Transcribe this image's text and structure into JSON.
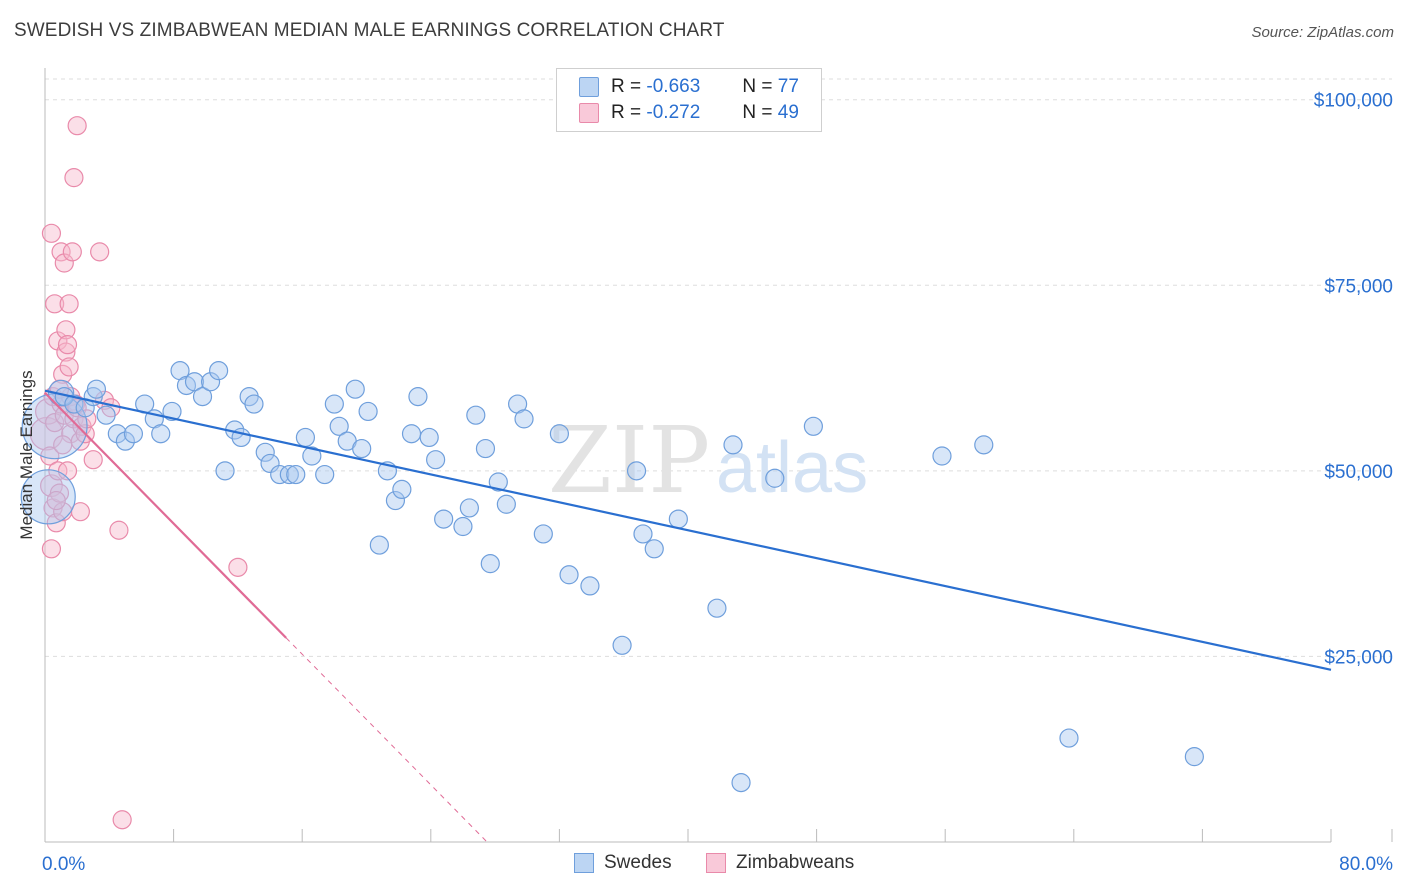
{
  "header": {
    "title": "SWEDISH VS ZIMBABWEAN MEDIAN MALE EARNINGS CORRELATION CHART",
    "source": "Source: ZipAtlas.com"
  },
  "watermark": {
    "zip": "ZIP",
    "atlas": "atlas"
  },
  "legend": {
    "r_label": "R =",
    "n_label": "N =",
    "series": [
      {
        "r_value": "-0.663",
        "n_value": "77"
      },
      {
        "r_value": "-0.272",
        "n_value": "49"
      }
    ]
  },
  "colors": {
    "swedes_fill": "#a9c8f0",
    "swedes_stroke": "#6f9fdc",
    "swedes_line": "#2a6fd0",
    "zimb_fill": "#f7b8cd",
    "zimb_stroke": "#e98aaa",
    "zimb_line": "#e06b96",
    "grid": "#dddddd",
    "label_blue": "#2a6fd0"
  },
  "chart_data": {
    "type": "scatter",
    "title": "SWEDISH VS ZIMBABWEAN MEDIAN MALE EARNINGS CORRELATION CHART",
    "xlabel": "",
    "ylabel": "Median Male Earnings",
    "xlim": [
      0,
      0.8
    ],
    "ylim": [
      0,
      104000
    ],
    "x_tick_labels": [
      "0.0%",
      "80.0%"
    ],
    "y_ticks": [
      {
        "value": 25000,
        "label": "$25,000"
      },
      {
        "value": 50000,
        "label": "$50,000"
      },
      {
        "value": 75000,
        "label": "$75,000"
      },
      {
        "value": 100000,
        "label": "$100,000"
      }
    ],
    "series": [
      {
        "name": "Swedes",
        "r": -0.663,
        "n": 77,
        "trend": {
          "x0": 0.0,
          "y0": 60800,
          "x1": 0.8,
          "y1": 23200,
          "dashed_from": null
        },
        "points": [
          [
            0.006,
            56000,
            36
          ],
          [
            0.002,
            46500,
            30
          ],
          [
            0.01,
            60500,
            14
          ],
          [
            0.012,
            60000,
            10
          ],
          [
            0.018,
            59000,
            10
          ],
          [
            0.025,
            58500,
            10
          ],
          [
            0.03,
            60000,
            10
          ],
          [
            0.032,
            61000,
            10
          ],
          [
            0.038,
            57500,
            10
          ],
          [
            0.045,
            55000,
            10
          ],
          [
            0.05,
            54000,
            10
          ],
          [
            0.055,
            55000,
            10
          ],
          [
            0.062,
            59000,
            10
          ],
          [
            0.068,
            57000,
            10
          ],
          [
            0.072,
            55000,
            10
          ],
          [
            0.079,
            58000,
            10
          ],
          [
            0.084,
            63500,
            10
          ],
          [
            0.088,
            61500,
            10
          ],
          [
            0.093,
            62000,
            10
          ],
          [
            0.098,
            60000,
            10
          ],
          [
            0.103,
            62000,
            10
          ],
          [
            0.108,
            63500,
            10
          ],
          [
            0.112,
            50000,
            10
          ],
          [
            0.118,
            55500,
            10
          ],
          [
            0.122,
            54500,
            10
          ],
          [
            0.127,
            60000,
            10
          ],
          [
            0.13,
            59000,
            10
          ],
          [
            0.137,
            52500,
            10
          ],
          [
            0.14,
            51000,
            10
          ],
          [
            0.146,
            49500,
            10
          ],
          [
            0.152,
            49500,
            10
          ],
          [
            0.156,
            49500,
            10
          ],
          [
            0.162,
            54500,
            10
          ],
          [
            0.166,
            52000,
            10
          ],
          [
            0.174,
            49500,
            10
          ],
          [
            0.18,
            59000,
            10
          ],
          [
            0.183,
            56000,
            10
          ],
          [
            0.188,
            54000,
            10
          ],
          [
            0.193,
            61000,
            10
          ],
          [
            0.197,
            53000,
            10
          ],
          [
            0.201,
            58000,
            10
          ],
          [
            0.208,
            40000,
            10
          ],
          [
            0.213,
            50000,
            10
          ],
          [
            0.218,
            46000,
            10
          ],
          [
            0.222,
            47500,
            10
          ],
          [
            0.228,
            55000,
            10
          ],
          [
            0.232,
            60000,
            10
          ],
          [
            0.239,
            54500,
            10
          ],
          [
            0.243,
            51500,
            10
          ],
          [
            0.248,
            43500,
            10
          ],
          [
            0.26,
            42500,
            10
          ],
          [
            0.264,
            45000,
            10
          ],
          [
            0.268,
            57500,
            10
          ],
          [
            0.274,
            53000,
            10
          ],
          [
            0.277,
            37500,
            10
          ],
          [
            0.282,
            48500,
            10
          ],
          [
            0.287,
            45500,
            10
          ],
          [
            0.294,
            59000,
            10
          ],
          [
            0.298,
            57000,
            10
          ],
          [
            0.31,
            41500,
            10
          ],
          [
            0.32,
            55000,
            10
          ],
          [
            0.326,
            36000,
            10
          ],
          [
            0.339,
            34500,
            10
          ],
          [
            0.359,
            26500,
            10
          ],
          [
            0.368,
            50000,
            10
          ],
          [
            0.372,
            41500,
            10
          ],
          [
            0.379,
            39500,
            10
          ],
          [
            0.394,
            43500,
            10
          ],
          [
            0.418,
            31500,
            10
          ],
          [
            0.428,
            53500,
            10
          ],
          [
            0.433,
            8000,
            10
          ],
          [
            0.454,
            49000,
            10
          ],
          [
            0.478,
            56000,
            10
          ],
          [
            0.558,
            52000,
            10
          ],
          [
            0.584,
            53500,
            10
          ],
          [
            0.637,
            14000,
            10
          ],
          [
            0.715,
            11500,
            10
          ]
        ]
      },
      {
        "name": "Zimbabweans",
        "r": -0.272,
        "n": 49,
        "trend": {
          "x0": 0.0,
          "y0": 60500,
          "x1": 0.275,
          "y1": 0,
          "dashed_from": 0.15
        },
        "points": [
          [
            0.001,
            55000,
            18
          ],
          [
            0.002,
            58000,
            14
          ],
          [
            0.003,
            52000,
            10
          ],
          [
            0.004,
            48000,
            12
          ],
          [
            0.005,
            45000,
            10
          ],
          [
            0.004,
            39500,
            10
          ],
          [
            0.005,
            60000,
            10
          ],
          [
            0.004,
            82000,
            10
          ],
          [
            0.006,
            72500,
            10
          ],
          [
            0.006,
            56500,
            10
          ],
          [
            0.007,
            43000,
            10
          ],
          [
            0.008,
            50000,
            10
          ],
          [
            0.008,
            67500,
            10
          ],
          [
            0.009,
            47000,
            10
          ],
          [
            0.01,
            59000,
            10
          ],
          [
            0.01,
            79500,
            10
          ],
          [
            0.011,
            44500,
            10
          ],
          [
            0.011,
            63000,
            10
          ],
          [
            0.012,
            57500,
            10
          ],
          [
            0.012,
            78000,
            10
          ],
          [
            0.013,
            66000,
            10
          ],
          [
            0.013,
            69000,
            10
          ],
          [
            0.014,
            67000,
            10
          ],
          [
            0.014,
            50000,
            10
          ],
          [
            0.015,
            64000,
            10
          ],
          [
            0.015,
            72500,
            10
          ],
          [
            0.016,
            60000,
            10
          ],
          [
            0.016,
            55000,
            10
          ],
          [
            0.017,
            79500,
            10
          ],
          [
            0.018,
            89500,
            10
          ],
          [
            0.018,
            57000,
            10
          ],
          [
            0.019,
            59000,
            10
          ],
          [
            0.02,
            96500,
            10
          ],
          [
            0.02,
            58500,
            10
          ],
          [
            0.022,
            44500,
            10
          ],
          [
            0.022,
            54000,
            10
          ],
          [
            0.023,
            56000,
            10
          ],
          [
            0.025,
            55000,
            10
          ],
          [
            0.026,
            57000,
            10
          ],
          [
            0.03,
            51500,
            10
          ],
          [
            0.034,
            79500,
            10
          ],
          [
            0.037,
            59500,
            10
          ],
          [
            0.041,
            58500,
            10
          ],
          [
            0.046,
            42000,
            10
          ],
          [
            0.048,
            3000,
            10
          ],
          [
            0.12,
            37000,
            10
          ],
          [
            0.007,
            46000,
            10
          ],
          [
            0.009,
            61000,
            10
          ],
          [
            0.011,
            53500,
            10
          ]
        ]
      }
    ]
  }
}
